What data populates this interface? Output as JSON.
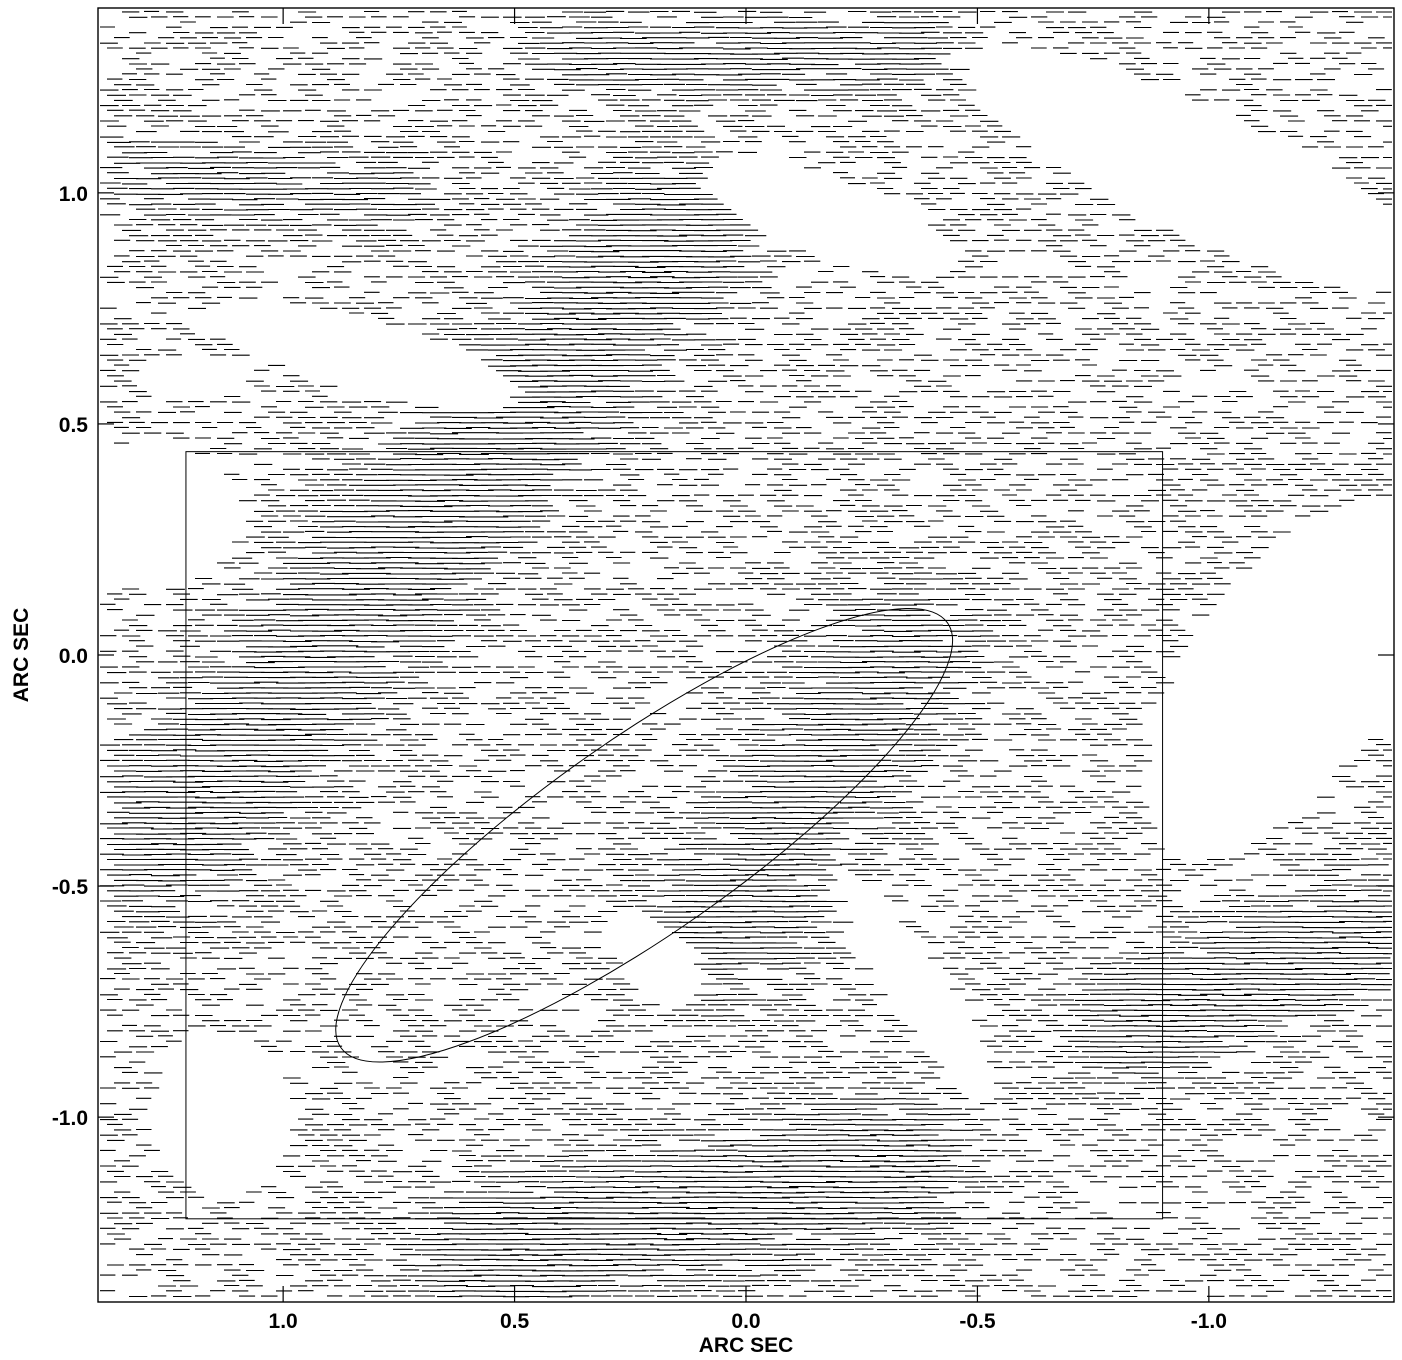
{
  "chart_data": {
    "type": "vector-field",
    "xlabel": "ARC SEC",
    "ylabel": "ARC SEC",
    "x_reversed": true,
    "xlim": [
      1.4,
      -1.4
    ],
    "ylim": [
      -1.4,
      1.4
    ],
    "x_ticks": [
      1.0,
      0.5,
      0.0,
      -0.5,
      -1.0
    ],
    "x_tick_labels": [
      "1.0",
      "0.5",
      "0.0",
      "-0.5",
      "-1.0"
    ],
    "y_ticks": [
      1.0,
      0.5,
      0.0,
      -0.5,
      -1.0
    ],
    "y_tick_labels": [
      "1.0",
      "0.5",
      "0.0",
      "-0.5",
      "-1.0"
    ],
    "grid": false,
    "line_color": "#000000",
    "background_color": "#ffffff",
    "field_description": "dense array of short horizontal polarization-vector segments across the field",
    "overlays": {
      "ellipse": {
        "center": [
          0.22,
          -0.39
        ],
        "semi_major": 0.8,
        "semi_minor": 0.21,
        "orientation_deg": 35
      },
      "slit_rectangle": {
        "x_range": [
          1.21,
          -0.9
        ],
        "y_range": [
          -1.22,
          0.44
        ]
      }
    }
  }
}
